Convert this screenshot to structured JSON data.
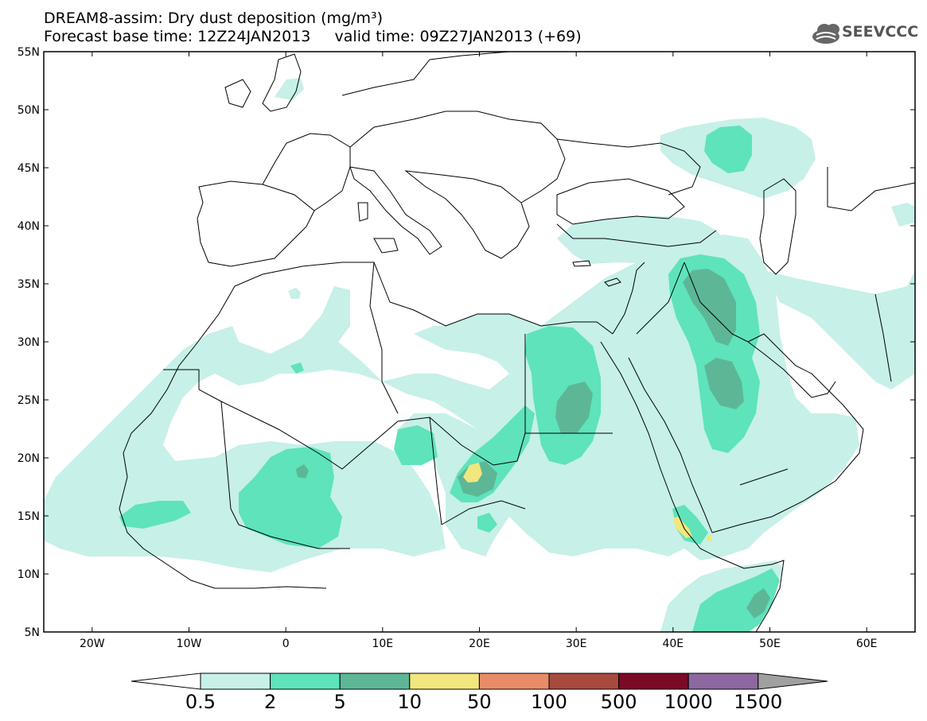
{
  "header": {
    "title": "DREAM8-assim: Dry dust deposition (mg/m³)",
    "subtitle": "Forecast base time: 12Z24JAN2013     valid time: 09Z27JAN2013 (+69)",
    "logo_text": "SEEVCCC"
  },
  "map": {
    "lon_range": [
      -25,
      65
    ],
    "lat_range": [
      5,
      55
    ],
    "lat_ticks": [
      "55N",
      "50N",
      "45N",
      "40N",
      "35N",
      "30N",
      "25N",
      "20N",
      "15N",
      "10N",
      "5N"
    ],
    "lat_values": [
      55,
      50,
      45,
      40,
      35,
      30,
      25,
      20,
      15,
      10,
      5
    ],
    "lon_ticks": [
      "20W",
      "10W",
      "0",
      "10E",
      "20E",
      "30E",
      "40E",
      "50E",
      "60E"
    ],
    "lon_values": [
      -20,
      -10,
      0,
      10,
      20,
      30,
      40,
      50,
      60
    ]
  },
  "colorbar": {
    "labels": [
      "0.5",
      "2",
      "5",
      "10",
      "50",
      "100",
      "500",
      "1000",
      "1500"
    ],
    "colors": [
      "#c6f0e8",
      "#5ee3bb",
      "#5db797",
      "#f2e67e",
      "#e88c68",
      "#a84a3e",
      "#7a0a26",
      "#8c67a0",
      "#a0a0a0"
    ],
    "under_color": "#ffffff"
  }
}
